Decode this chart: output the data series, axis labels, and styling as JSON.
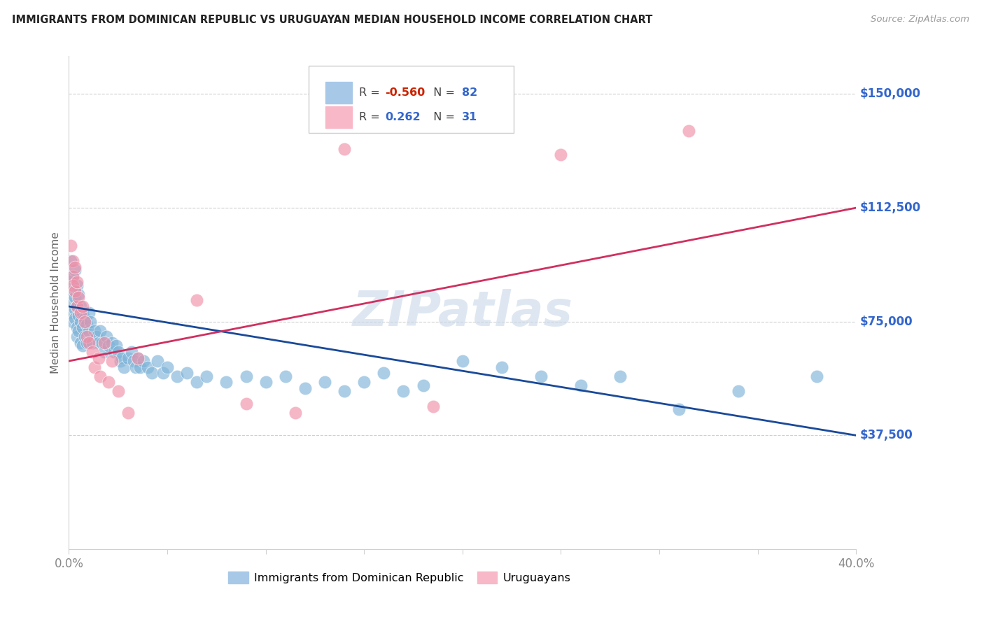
{
  "title": "IMMIGRANTS FROM DOMINICAN REPUBLIC VS URUGUAYAN MEDIAN HOUSEHOLD INCOME CORRELATION CHART",
  "source": "Source: ZipAtlas.com",
  "ylabel": "Median Household Income",
  "ytick_values": [
    37500,
    75000,
    112500,
    150000
  ],
  "ytick_labels": [
    "$37,500",
    "$75,000",
    "$112,500",
    "$150,000"
  ],
  "xmin": 0.0,
  "xmax": 0.4,
  "ymin": 0,
  "ymax": 162500,
  "blue_scatter_color": "#7fb3d8",
  "pink_scatter_color": "#f090a8",
  "blue_line_color": "#1a4a99",
  "pink_line_color": "#d03060",
  "blue_legend_color": "#a8c8e8",
  "pink_legend_color": "#f8b8c8",
  "watermark_color": "#c8d8e8",
  "right_label_color": "#3366cc",
  "grid_color": "#d0d0d0",
  "title_color": "#222222",
  "source_color": "#999999",
  "ylabel_color": "#666666",
  "xtick_label_color": "#888888",
  "watermark": "ZIPatlas",
  "blue_r": "-0.560",
  "blue_n": "82",
  "pink_r": "0.262",
  "pink_n": "31",
  "blue_line_x": [
    0.0,
    0.4
  ],
  "blue_line_y": [
    80000,
    37500
  ],
  "pink_line_x": [
    0.0,
    0.4
  ],
  "pink_line_y": [
    62000,
    112500
  ],
  "blue_dots": [
    [
      0.001,
      95000
    ],
    [
      0.001,
      88000
    ],
    [
      0.001,
      82000
    ],
    [
      0.002,
      90000
    ],
    [
      0.002,
      85000
    ],
    [
      0.002,
      78000
    ],
    [
      0.002,
      75000
    ],
    [
      0.003,
      92000
    ],
    [
      0.003,
      83000
    ],
    [
      0.003,
      79000
    ],
    [
      0.003,
      76000
    ],
    [
      0.004,
      87000
    ],
    [
      0.004,
      80000
    ],
    [
      0.004,
      73000
    ],
    [
      0.004,
      70000
    ],
    [
      0.005,
      84000
    ],
    [
      0.005,
      77000
    ],
    [
      0.005,
      72000
    ],
    [
      0.006,
      80000
    ],
    [
      0.006,
      75000
    ],
    [
      0.006,
      68000
    ],
    [
      0.007,
      78000
    ],
    [
      0.007,
      73000
    ],
    [
      0.007,
      67000
    ],
    [
      0.008,
      76000
    ],
    [
      0.008,
      70000
    ],
    [
      0.009,
      74000
    ],
    [
      0.009,
      68000
    ],
    [
      0.01,
      78000
    ],
    [
      0.01,
      72000
    ],
    [
      0.011,
      75000
    ],
    [
      0.012,
      68000
    ],
    [
      0.013,
      72000
    ],
    [
      0.014,
      70000
    ],
    [
      0.015,
      68000
    ],
    [
      0.016,
      72000
    ],
    [
      0.017,
      68000
    ],
    [
      0.018,
      65000
    ],
    [
      0.019,
      70000
    ],
    [
      0.02,
      67000
    ],
    [
      0.022,
      68000
    ],
    [
      0.023,
      65000
    ],
    [
      0.024,
      67000
    ],
    [
      0.025,
      65000
    ],
    [
      0.026,
      62000
    ],
    [
      0.027,
      63000
    ],
    [
      0.028,
      60000
    ],
    [
      0.03,
      63000
    ],
    [
      0.032,
      65000
    ],
    [
      0.033,
      62000
    ],
    [
      0.034,
      60000
    ],
    [
      0.035,
      63000
    ],
    [
      0.036,
      60000
    ],
    [
      0.038,
      62000
    ],
    [
      0.04,
      60000
    ],
    [
      0.042,
      58000
    ],
    [
      0.045,
      62000
    ],
    [
      0.048,
      58000
    ],
    [
      0.05,
      60000
    ],
    [
      0.055,
      57000
    ],
    [
      0.06,
      58000
    ],
    [
      0.065,
      55000
    ],
    [
      0.07,
      57000
    ],
    [
      0.08,
      55000
    ],
    [
      0.09,
      57000
    ],
    [
      0.1,
      55000
    ],
    [
      0.11,
      57000
    ],
    [
      0.12,
      53000
    ],
    [
      0.13,
      55000
    ],
    [
      0.14,
      52000
    ],
    [
      0.15,
      55000
    ],
    [
      0.16,
      58000
    ],
    [
      0.17,
      52000
    ],
    [
      0.18,
      54000
    ],
    [
      0.2,
      62000
    ],
    [
      0.22,
      60000
    ],
    [
      0.24,
      57000
    ],
    [
      0.26,
      54000
    ],
    [
      0.28,
      57000
    ],
    [
      0.31,
      46000
    ],
    [
      0.34,
      52000
    ],
    [
      0.38,
      57000
    ]
  ],
  "pink_dots": [
    [
      0.001,
      100000
    ],
    [
      0.002,
      95000
    ],
    [
      0.002,
      90000
    ],
    [
      0.002,
      87000
    ],
    [
      0.003,
      93000
    ],
    [
      0.003,
      85000
    ],
    [
      0.004,
      88000
    ],
    [
      0.004,
      80000
    ],
    [
      0.005,
      83000
    ],
    [
      0.006,
      78000
    ],
    [
      0.007,
      80000
    ],
    [
      0.008,
      75000
    ],
    [
      0.009,
      70000
    ],
    [
      0.01,
      68000
    ],
    [
      0.012,
      65000
    ],
    [
      0.013,
      60000
    ],
    [
      0.015,
      63000
    ],
    [
      0.016,
      57000
    ],
    [
      0.018,
      68000
    ],
    [
      0.02,
      55000
    ],
    [
      0.022,
      62000
    ],
    [
      0.025,
      52000
    ],
    [
      0.03,
      45000
    ],
    [
      0.035,
      63000
    ],
    [
      0.065,
      82000
    ],
    [
      0.09,
      48000
    ],
    [
      0.115,
      45000
    ],
    [
      0.14,
      132000
    ],
    [
      0.185,
      47000
    ],
    [
      0.25,
      130000
    ],
    [
      0.315,
      138000
    ]
  ]
}
